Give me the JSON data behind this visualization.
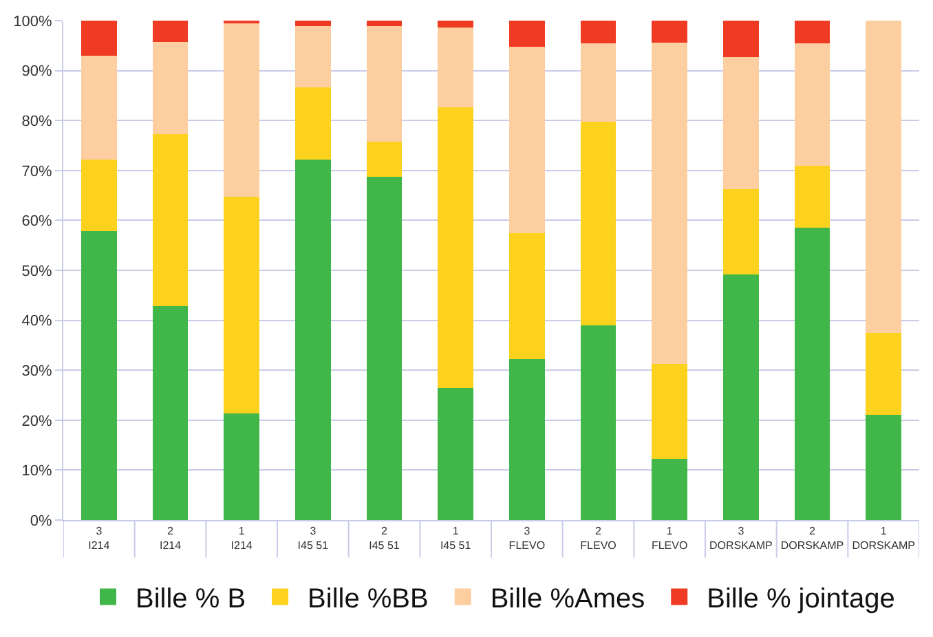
{
  "chart_data": {
    "type": "bar",
    "stacked": true,
    "categories": [
      "3\nI214",
      "2\nI214",
      "1\nI214",
      "3\nI45 51",
      "2\nI45 51",
      "1\nI45 51",
      "3\nFLEVO",
      "2\nFLEVO",
      "1\nFLEVO",
      "3\nDORSKAMP",
      "2\nDORSKAMP",
      "1\nDORSKAMP"
    ],
    "series": [
      {
        "name": "Bille % B",
        "color": "#41b649",
        "values": [
          57.8,
          42.8,
          21.4,
          72.2,
          68.7,
          26.4,
          32.3,
          39.0,
          12.3,
          49.2,
          58.5,
          21.1
        ]
      },
      {
        "name": "Bille %BB",
        "color": "#fcd21f",
        "values": [
          14.4,
          34.5,
          43.3,
          14.4,
          7.0,
          56.2,
          25.1,
          40.8,
          19.0,
          17.0,
          12.5,
          16.3
        ]
      },
      {
        "name": "Bille %Ames",
        "color": "#fccea0",
        "values": [
          20.8,
          18.4,
          34.7,
          12.3,
          23.2,
          16.0,
          37.4,
          15.6,
          64.3,
          26.5,
          24.4,
          62.6
        ]
      },
      {
        "name": "Bille % jointage",
        "color": "#ef3b23",
        "values": [
          7.0,
          4.3,
          0.6,
          1.1,
          1.1,
          1.4,
          5.2,
          4.6,
          4.4,
          7.3,
          4.6,
          0.0
        ]
      }
    ],
    "ylim": [
      0,
      100
    ],
    "yticks": [
      {
        "value": 0,
        "label": "0%"
      },
      {
        "value": 10,
        "label": "10%"
      },
      {
        "value": 20,
        "label": "20%"
      },
      {
        "value": 30,
        "label": "30%"
      },
      {
        "value": 40,
        "label": "40%"
      },
      {
        "value": 50,
        "label": "50%"
      },
      {
        "value": 60,
        "label": "60%"
      },
      {
        "value": 70,
        "label": "70%"
      },
      {
        "value": 80,
        "label": "80%"
      },
      {
        "value": 90,
        "label": "90%"
      },
      {
        "value": 100,
        "label": "100%"
      }
    ],
    "grid": "y",
    "legend": "bottom"
  }
}
